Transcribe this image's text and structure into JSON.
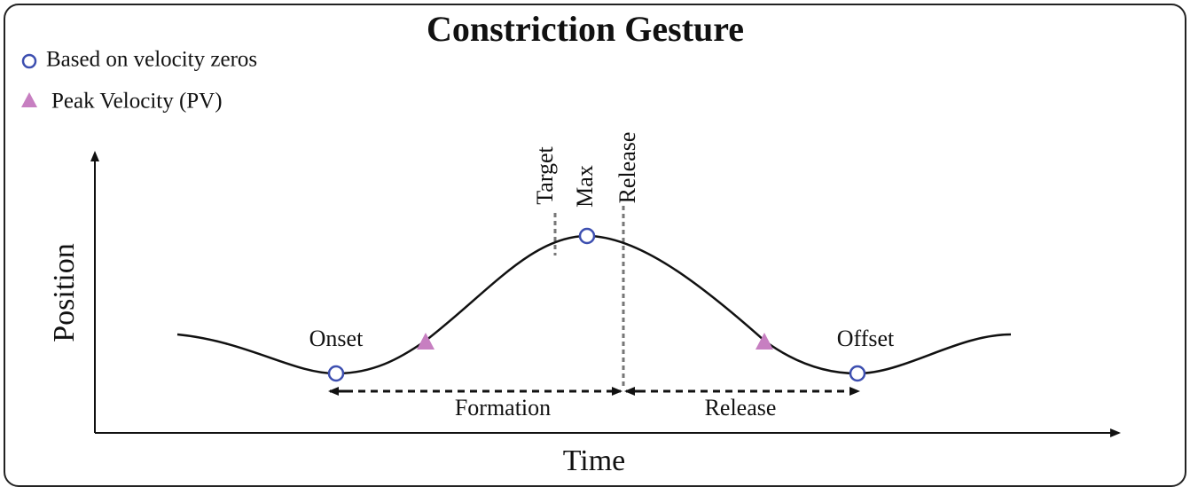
{
  "title": "Constriction Gesture",
  "legend": [
    {
      "label": "Based on velocity zeros"
    },
    {
      "label": "Peak Velocity (PV)"
    }
  ],
  "axes": {
    "x_label": "Time",
    "y_label": "Position"
  },
  "landmarks": {
    "target": "Target",
    "max": "Max",
    "release": "Release",
    "onset": "Onset",
    "offset": "Offset"
  },
  "intervals": {
    "formation": "Formation",
    "release": "Release"
  }
}
